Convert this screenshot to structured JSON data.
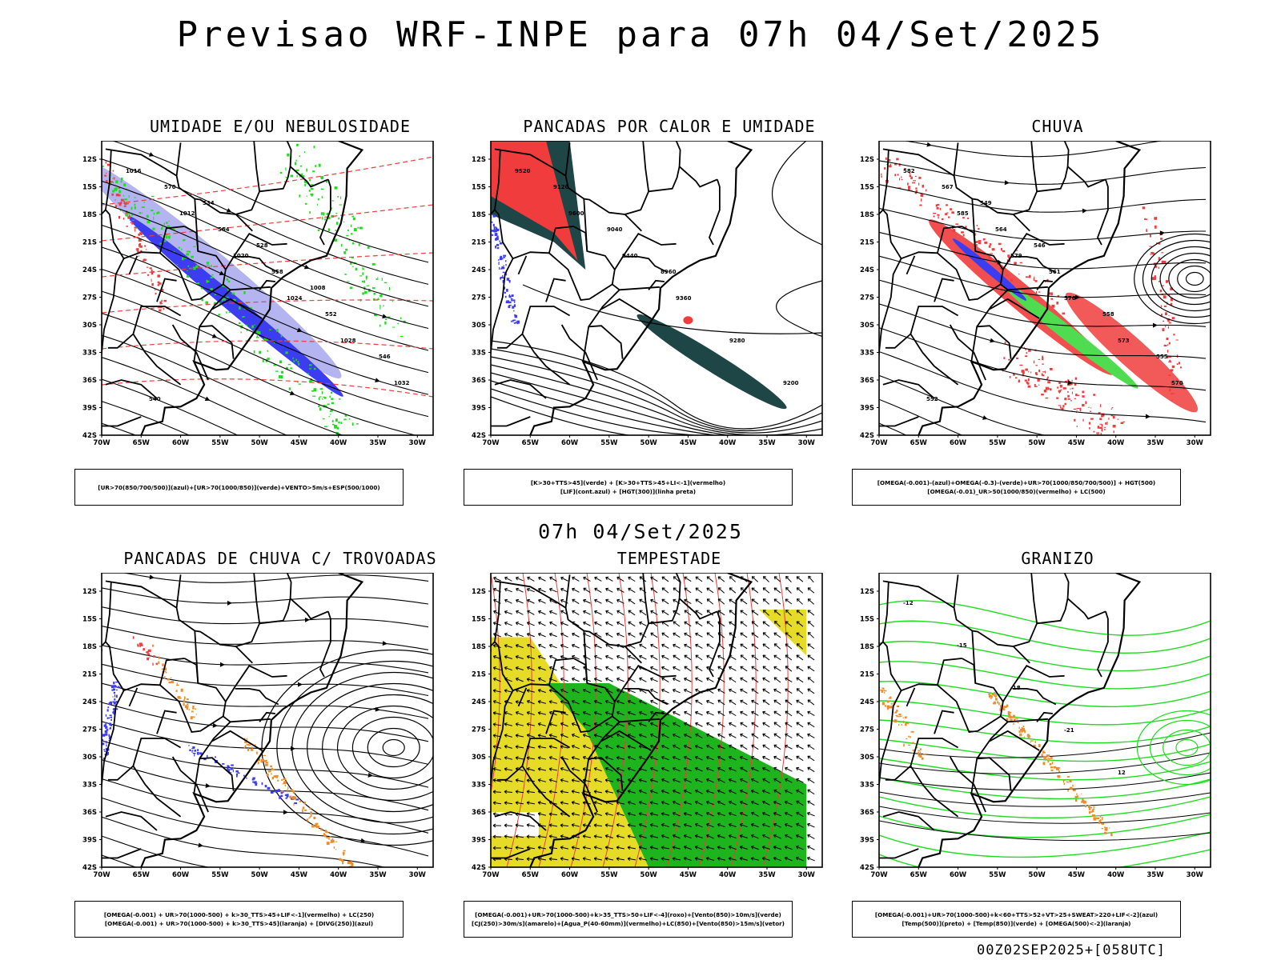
{
  "title": "Previsao WRF-INPE  para 07h 04/Set/2025",
  "mid_title": "07h 04/Set/2025",
  "footer": "00Z02SEP2025+[058UTC]",
  "axes": {
    "lat_labels": [
      "12S",
      "15S",
      "18S",
      "21S",
      "24S",
      "27S",
      "30S",
      "33S",
      "36S",
      "39S",
      "42S"
    ],
    "lon_labels": [
      "70W",
      "65W",
      "60W",
      "55W",
      "50W",
      "45W",
      "40W",
      "35W",
      "30W"
    ]
  },
  "panels": [
    {
      "title": "UMIDADE E/OU NEBULOSIDADE",
      "legend": [
        "[UR>70(850/700/500)](azul)+[UR>70(1000/850)](verde)+VENTO>5m/s+ESP(500/1000)"
      ],
      "labels": [
        "1016",
        "1012",
        "1020",
        "1024",
        "1028",
        "1032",
        "570",
        "564",
        "558",
        "552",
        "546",
        "540",
        "534",
        "528",
        "1008"
      ]
    },
    {
      "title": "PANCADAS POR CALOR E UMIDADE",
      "legend": [
        "[K>30+TTS>45](verde) + [K>30+TTS>45+LI<-1](vermelho)",
        "[LIF](cont.azul) + [HGT(300)](linha preta)"
      ],
      "labels": [
        "9520",
        "9600",
        "9440",
        "9360",
        "9280",
        "9200",
        "9120",
        "9040",
        "8960"
      ]
    },
    {
      "title": "CHUVA",
      "legend": [
        "[OMEGA(-0.001)-(azul)+OMEGA(-0.3)-(verde)+UR>70(1000/850/700/500)] + HGT(500)",
        "[OMEGA(-0.01)_UR>50(1000/850)(vermelho) + LC(500)"
      ],
      "labels": [
        "582",
        "585",
        "579",
        "576",
        "573",
        "570",
        "567",
        "564",
        "561",
        "558",
        "555",
        "552",
        "549",
        "546"
      ]
    },
    {
      "title": "PANCADAS DE CHUVA C/ TROVOADAS",
      "legend": [
        "[OMEGA(-0.001) + UR>70(1000-500) + k>30_TTS>45+LIF<-1](vermelho) + LC(250)",
        "[OMEGA(-0.001) + UR>70(1000-500) + k>30_TTS>45](laranja) + [DIVG(250)](azul)"
      ],
      "labels": []
    },
    {
      "title": "TEMPESTADE",
      "legend": [
        "[OMEGA(-0.001)+UR>70(1000-500)+k>35_TTS>50+LIF<-4](roxo)+[Vento(850)>10m/s](verde)",
        "[CJ(250)>30m/s](amarelo)+[Agua_P(40-60mm)](vermelho)+LC(850)+[Vento(850)>15m/s](vetor)"
      ],
      "labels": []
    },
    {
      "title": "GRANIZO",
      "legend": [
        "[OMEGA(-0.001)+UR>70(1000-500)+k<60+TTS>52+VT>25+SWEAT>220+LIF<-2](azul)",
        "[Temp(500)](preto) + [Temp(850)](verde) + [OMEGA(500)<-2](laranja)"
      ],
      "labels": [
        "-12",
        "-15",
        "-18",
        "-21",
        "12"
      ]
    }
  ],
  "colors": {
    "red": "#f03c3c",
    "blue": "#3c3cf0",
    "green": "#1edc1e",
    "darkteal": "#1e4646",
    "yellow": "#e6dc28",
    "orange": "#f08c28",
    "lightblue": "#aaaaf0",
    "lightgreen": "#50dc50"
  }
}
